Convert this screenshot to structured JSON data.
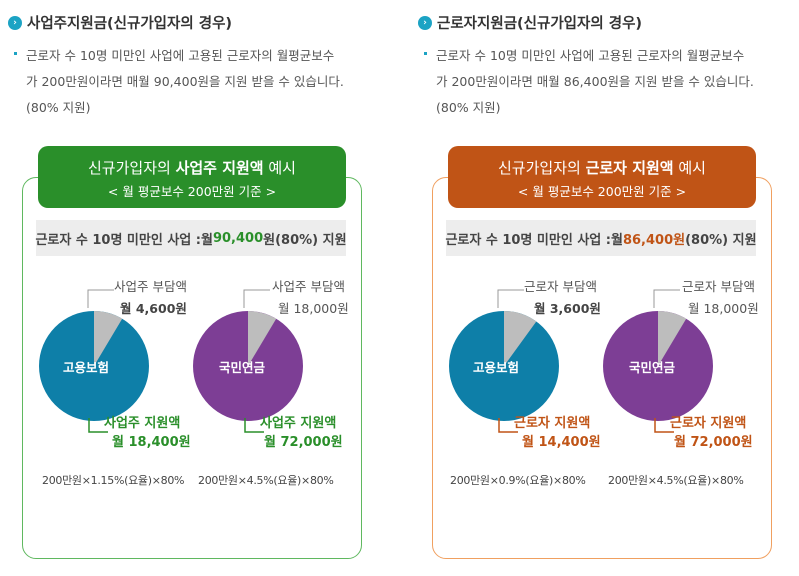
{
  "left": {
    "title": "사업주지원금(신규가입자의 경우)",
    "desc_line1": "근로자 수 10명 미만인 사업에 고용된 근로자의 월평균보수",
    "desc_line2": "가 200만원이라면 매월 90,400원을 지원 받을 수 있습니다.",
    "desc_line3": "(80% 지원)",
    "banner_pre": "신규가입자의 ",
    "banner_bold": "사업주 지원액",
    "banner_post": " 예시",
    "banner_sub": "< 월 평균보수 200만원 기준 >",
    "bar_prefix": "근로자 수 10명 미만인 사업 : ",
    "bar_month": "월 ",
    "bar_amount": "90,400",
    "bar_suffix": " 원(80%) 지원",
    "accent_color": "#2a8f2a",
    "pie1": {
      "name": "고용보험",
      "share_label": "사업주 부담액",
      "share_amount": "월 4,600원",
      "support_label": "사업주 지원액",
      "support_amount": "월 18,400원",
      "formula": "200만원×1.15%(요율)×80%",
      "color": "#0e7fa8"
    },
    "pie2": {
      "name": "국민연금",
      "share_label": "사업주 부담액",
      "share_amount": "월 18,000원",
      "support_label": "사업주 지원액",
      "support_amount": "월 72,000원",
      "formula": "200만원×4.5%(요율)×80%",
      "color": "#7d3e95"
    }
  },
  "right": {
    "title": "근로자지원금(신규가입자의 경우)",
    "desc_line1": "근로자 수 10명 미만인 사업에 고용된 근로자의 월평균보수",
    "desc_line2": "가 200만원이라면 매월 86,400원을 지원 받을 수 있습니다.",
    "desc_line3": "(80% 지원)",
    "banner_pre": "신규가입자의 ",
    "banner_bold": "근로자 지원액",
    "banner_post": " 예시",
    "banner_sub": "< 월 평균보수 200만원 기준 >",
    "bar_prefix": "근로자 수 10명 미만인 사업 : ",
    "bar_month": "월 ",
    "bar_amount": "86,400원",
    "bar_suffix": "(80%) 지원",
    "accent_color": "#c05416",
    "pie1": {
      "name": "고용보험",
      "share_label": "근로자 부담액",
      "share_amount": "월 3,600원",
      "support_label": "근로자 지원액",
      "support_amount": "월 14,400원",
      "formula": "200만원×0.9%(요율)×80%",
      "color": "#0e7fa8"
    },
    "pie2": {
      "name": "국민연금",
      "share_label": "근로자 부담액",
      "share_amount": "월 18,000원",
      "support_label": "근로자 지원액",
      "support_amount": "월 72,000원",
      "formula": "200만원×4.5%(요율)×80%",
      "color": "#7d3e95"
    }
  },
  "colors": {
    "icon": "#1ca3c4",
    "pie_share": "#bdbdbd",
    "green": "#2a8f2a",
    "orange": "#c05416"
  }
}
